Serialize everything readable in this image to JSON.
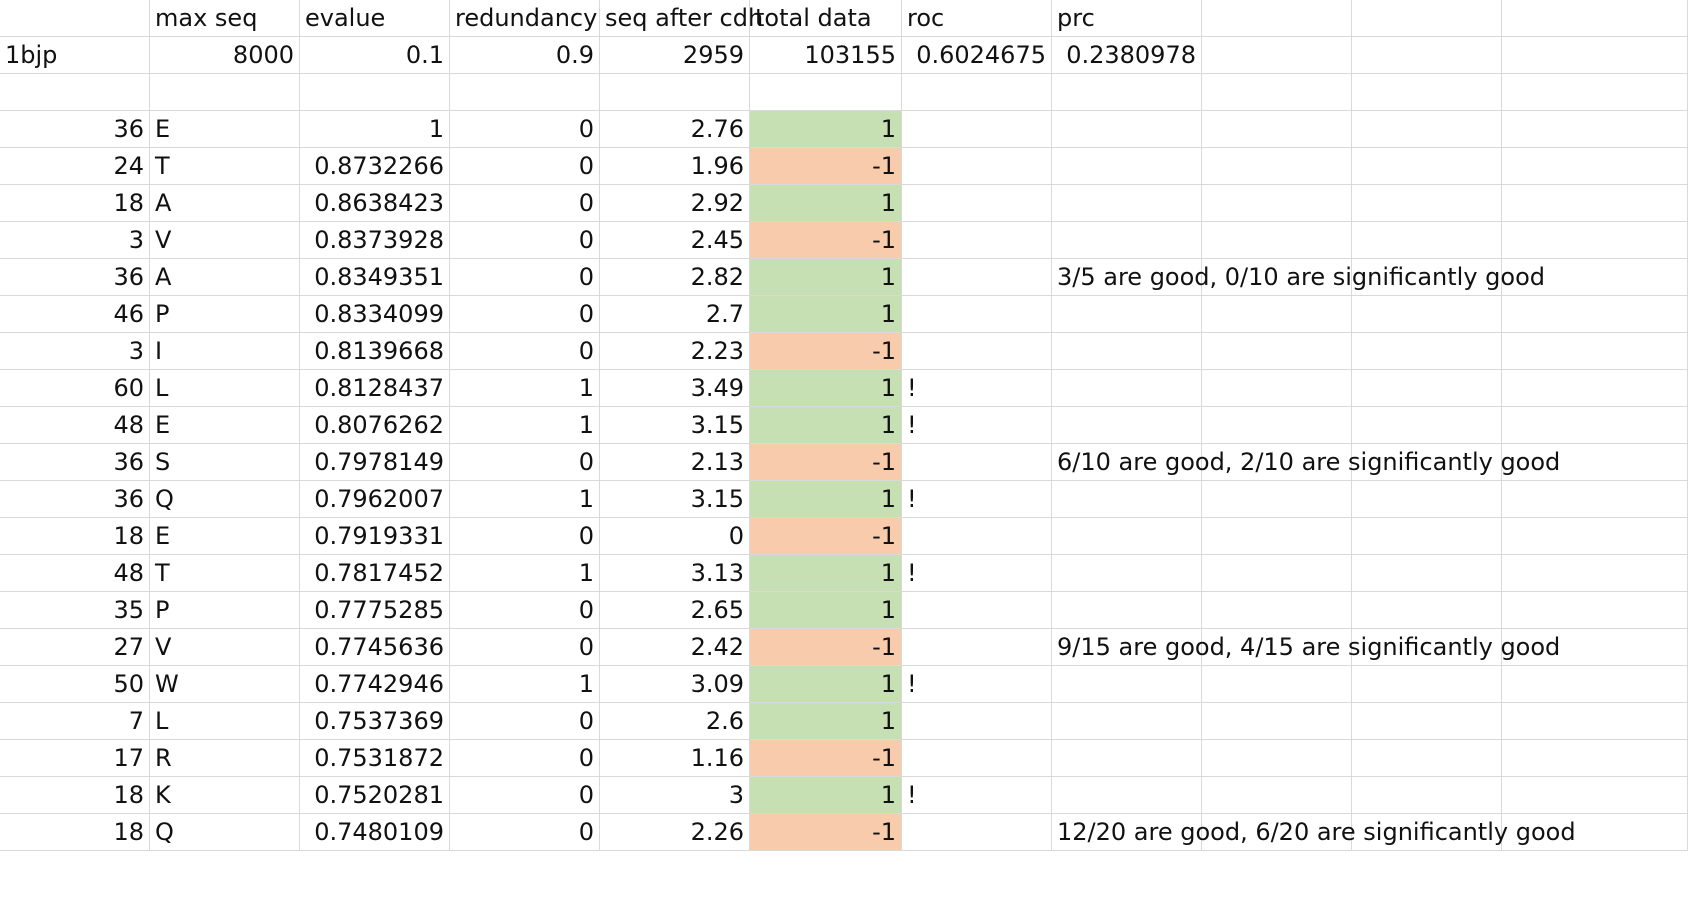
{
  "headers": [
    "",
    "max seq",
    "evalue",
    "redundancy",
    "seq after cdh",
    "total data",
    "roc",
    "prc",
    "",
    "",
    ""
  ],
  "info_row": [
    "1bjp",
    "8000",
    "0.1",
    "0.9",
    "2959",
    "103155",
    "0.6024675",
    "0.2380978"
  ],
  "rows": [
    {
      "pos": "36",
      "aa": "E",
      "score": "1",
      "red": "0",
      "val": "2.76",
      "label": "1",
      "flag": "",
      "note": ""
    },
    {
      "pos": "24",
      "aa": "T",
      "score": "0.8732266",
      "red": "0",
      "val": "1.96",
      "label": "-1",
      "flag": "",
      "note": ""
    },
    {
      "pos": "18",
      "aa": "A",
      "score": "0.8638423",
      "red": "0",
      "val": "2.92",
      "label": "1",
      "flag": "",
      "note": ""
    },
    {
      "pos": "3",
      "aa": "V",
      "score": "0.8373928",
      "red": "0",
      "val": "2.45",
      "label": "-1",
      "flag": "",
      "note": ""
    },
    {
      "pos": "36",
      "aa": "A",
      "score": "0.8349351",
      "red": "0",
      "val": "2.82",
      "label": "1",
      "flag": "",
      "note": "3/5 are good, 0/10 are significantly good"
    },
    {
      "pos": "46",
      "aa": "P",
      "score": "0.8334099",
      "red": "0",
      "val": "2.7",
      "label": "1",
      "flag": "",
      "note": ""
    },
    {
      "pos": "3",
      "aa": "I",
      "score": "0.8139668",
      "red": "0",
      "val": "2.23",
      "label": "-1",
      "flag": "",
      "note": ""
    },
    {
      "pos": "60",
      "aa": "L",
      "score": "0.8128437",
      "red": "1",
      "val": "3.49",
      "label": "1",
      "flag": "!",
      "note": ""
    },
    {
      "pos": "48",
      "aa": "E",
      "score": "0.8076262",
      "red": "1",
      "val": "3.15",
      "label": "1",
      "flag": "!",
      "note": ""
    },
    {
      "pos": "36",
      "aa": "S",
      "score": "0.7978149",
      "red": "0",
      "val": "2.13",
      "label": "-1",
      "flag": "",
      "note": "6/10 are good, 2/10 are significantly good"
    },
    {
      "pos": "36",
      "aa": "Q",
      "score": "0.7962007",
      "red": "1",
      "val": "3.15",
      "label": "1",
      "flag": "!",
      "note": ""
    },
    {
      "pos": "18",
      "aa": "E",
      "score": "0.7919331",
      "red": "0",
      "val": "0",
      "label": "-1",
      "flag": "",
      "note": ""
    },
    {
      "pos": "48",
      "aa": "T",
      "score": "0.7817452",
      "red": "1",
      "val": "3.13",
      "label": "1",
      "flag": "!",
      "note": ""
    },
    {
      "pos": "35",
      "aa": "P",
      "score": "0.7775285",
      "red": "0",
      "val": "2.65",
      "label": "1",
      "flag": "",
      "note": ""
    },
    {
      "pos": "27",
      "aa": "V",
      "score": "0.7745636",
      "red": "0",
      "val": "2.42",
      "label": "-1",
      "flag": "",
      "note": "9/15 are good, 4/15 are significantly good"
    },
    {
      "pos": "50",
      "aa": "W",
      "score": "0.7742946",
      "red": "1",
      "val": "3.09",
      "label": "1",
      "flag": "!",
      "note": ""
    },
    {
      "pos": "7",
      "aa": "L",
      "score": "0.7537369",
      "red": "0",
      "val": "2.6",
      "label": "1",
      "flag": "",
      "note": ""
    },
    {
      "pos": "17",
      "aa": "R",
      "score": "0.7531872",
      "red": "0",
      "val": "1.16",
      "label": "-1",
      "flag": "",
      "note": ""
    },
    {
      "pos": "18",
      "aa": "K",
      "score": "0.7520281",
      "red": "0",
      "val": "3",
      "label": "1",
      "flag": "!",
      "note": ""
    },
    {
      "pos": "18",
      "aa": "Q",
      "score": "0.7480109",
      "red": "0",
      "val": "2.26",
      "label": "-1",
      "flag": "",
      "note": "12/20 are good, 6/20 are significantly good"
    }
  ],
  "colors": {
    "positive": "#c6e0b4",
    "negative": "#f8cbad",
    "grid": "#d9d9d9"
  }
}
